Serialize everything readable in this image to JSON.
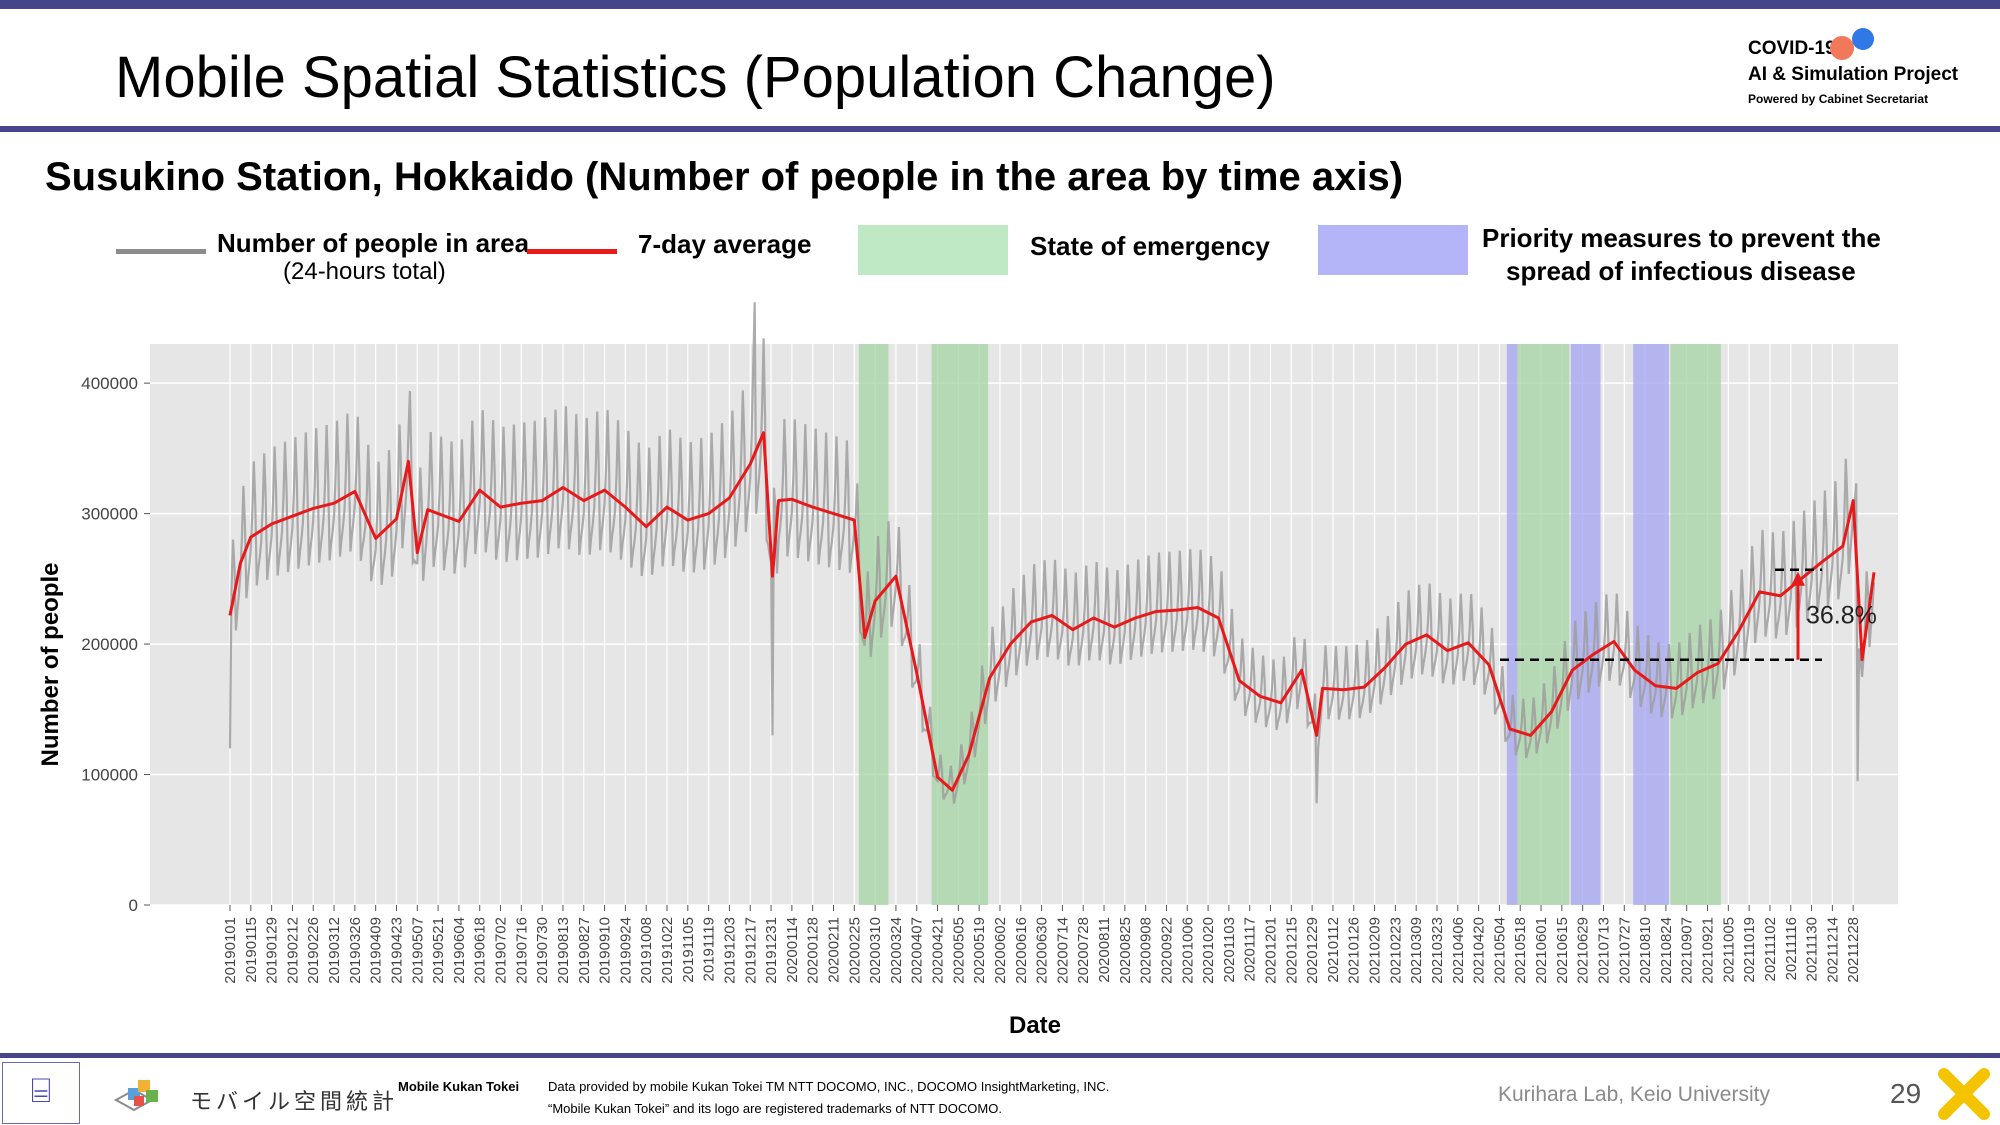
{
  "slide": {
    "title": "Mobile Spatial Statistics (Population Change)",
    "page_number": "29",
    "brand": {
      "line1": "COVID-19",
      "line2": "AI & Simulation Project",
      "line3": "Powered by Cabinet Secretariat"
    },
    "footer": {
      "logo_text": "モバイル空間統計",
      "mobile_kukan_label": "Mobile Kukan Tokei",
      "credit_line1": "Data provided by mobile Kukan Tokei TM NTT DOCOMO, INC., DOCOMO InsightMarketing, INC.",
      "credit_line2": "“Mobile Kukan Tokei” and its logo are registered trademarks of NTT DOCOMO.",
      "lab": "Kurihara Lab, Keio University"
    }
  },
  "legend": {
    "gray_label": "Number of people in area",
    "gray_sublabel": "(24-hours total)",
    "red_label": "7-day average",
    "green_label": "State of emergency",
    "purple_label_line1": "Priority measures to prevent the",
    "purple_label_line2": "spread of infectious disease"
  },
  "colors": {
    "daily_line": "#9e9e9e",
    "average_line": "#e8191a",
    "emergency_band": "#9fd19f",
    "priority_band": "#9e9ef2",
    "plot_background": "#e6e6e6",
    "accent": "#45458a"
  },
  "chart_data": {
    "type": "line",
    "title": "Susukino Station, Hokkaido (Number of people in the area by time axis)",
    "xlabel": "Date",
    "ylabel": "Number of people",
    "ylim": [
      0,
      430000
    ],
    "xlim": [
      "2019-01-01",
      "2022-01-11"
    ],
    "yticks": [
      0,
      100000,
      200000,
      300000,
      400000
    ],
    "ytick_labels": [
      "0",
      "100000",
      "200000",
      "300000",
      "400000"
    ],
    "xtick_labels": [
      "20190101",
      "20190115",
      "20190129",
      "20190212",
      "20190226",
      "20190312",
      "20190326",
      "20190409",
      "20190423",
      "20190507",
      "20190521",
      "20190604",
      "20190618",
      "20190702",
      "20190716",
      "20190730",
      "20190813",
      "20190827",
      "20190910",
      "20190924",
      "20191008",
      "20191022",
      "20191105",
      "20191119",
      "20191203",
      "20191217",
      "20191231",
      "20200114",
      "20200128",
      "20200211",
      "20200225",
      "20200310",
      "20200324",
      "20200407",
      "20200421",
      "20200505",
      "20200519",
      "20200602",
      "20200616",
      "20200630",
      "20200714",
      "20200728",
      "20200811",
      "20200825",
      "20200908",
      "20200922",
      "20201006",
      "20201020",
      "20201103",
      "20201117",
      "20201201",
      "20201215",
      "20201229",
      "20210112",
      "20210126",
      "20210209",
      "20210223",
      "20210309",
      "20210323",
      "20210406",
      "20210420",
      "20210504",
      "20210518",
      "20210601",
      "20210615",
      "20210629",
      "20210713",
      "20210727",
      "20210810",
      "20210824",
      "20210907",
      "20210921",
      "20211005",
      "20211019",
      "20211102",
      "20211116",
      "20211130",
      "20211214",
      "20211228"
    ],
    "grid": true,
    "series": [
      {
        "name": "7-day average",
        "x": [
          "2019-01-01",
          "2019-01-08",
          "2019-01-15",
          "2019-01-29",
          "2019-02-12",
          "2019-02-26",
          "2019-03-12",
          "2019-03-26",
          "2019-04-09",
          "2019-04-23",
          "2019-05-01",
          "2019-05-07",
          "2019-05-14",
          "2019-05-21",
          "2019-06-04",
          "2019-06-18",
          "2019-07-02",
          "2019-07-16",
          "2019-07-30",
          "2019-08-13",
          "2019-08-27",
          "2019-09-10",
          "2019-09-24",
          "2019-10-08",
          "2019-10-22",
          "2019-11-05",
          "2019-11-19",
          "2019-12-03",
          "2019-12-17",
          "2019-12-26",
          "2020-01-01",
          "2020-01-05",
          "2020-01-14",
          "2020-01-28",
          "2020-02-11",
          "2020-02-25",
          "2020-03-03",
          "2020-03-10",
          "2020-03-24",
          "2020-04-07",
          "2020-04-21",
          "2020-05-01",
          "2020-05-12",
          "2020-05-26",
          "2020-06-09",
          "2020-06-23",
          "2020-07-07",
          "2020-07-21",
          "2020-08-04",
          "2020-08-18",
          "2020-09-01",
          "2020-09-15",
          "2020-09-29",
          "2020-10-13",
          "2020-10-27",
          "2020-11-10",
          "2020-11-24",
          "2020-12-08",
          "2020-12-22",
          "2021-01-01",
          "2021-01-05",
          "2021-01-19",
          "2021-02-02",
          "2021-02-16",
          "2021-03-02",
          "2021-03-16",
          "2021-03-30",
          "2021-04-13",
          "2021-04-27",
          "2021-05-11",
          "2021-05-25",
          "2021-06-08",
          "2021-06-22",
          "2021-07-06",
          "2021-07-20",
          "2021-08-03",
          "2021-08-17",
          "2021-08-31",
          "2021-09-14",
          "2021-09-28",
          "2021-10-12",
          "2021-10-26",
          "2021-11-09",
          "2021-11-23",
          "2021-12-07",
          "2021-12-21",
          "2021-12-28",
          "2022-01-03",
          "2022-01-11"
        ],
        "y": [
          222000,
          262000,
          282000,
          292000,
          298000,
          304000,
          308000,
          317000,
          281000,
          296000,
          340000,
          270000,
          303000,
          300000,
          294000,
          318000,
          305000,
          308000,
          310000,
          320000,
          310000,
          318000,
          305000,
          290000,
          305000,
          295000,
          300000,
          312000,
          338000,
          362000,
          252000,
          310000,
          311000,
          305000,
          300000,
          295000,
          205000,
          233000,
          252000,
          178000,
          98000,
          88000,
          115000,
          174000,
          200000,
          217000,
          222000,
          211000,
          220000,
          213000,
          220000,
          225000,
          226000,
          228000,
          220000,
          172000,
          160000,
          155000,
          180000,
          130000,
          166000,
          165000,
          167000,
          182000,
          200000,
          207000,
          195000,
          201000,
          184000,
          135000,
          130000,
          148000,
          180000,
          192000,
          202000,
          180000,
          168000,
          166000,
          178000,
          185000,
          210000,
          240000,
          237000,
          250000,
          263000,
          275000,
          310000,
          188000,
          255000
        ]
      },
      {
        "name": "Number of people in area",
        "note": "daily values oscillate weekly around the 7-day average (peaks up to about 465000 in Dec 2019; lows near 72000 in May 2020)"
      }
    ],
    "bands": [
      {
        "type": "State of emergency",
        "start": "2020-02-28",
        "end": "2020-03-19"
      },
      {
        "type": "State of emergency",
        "start": "2020-04-17",
        "end": "2020-05-25"
      },
      {
        "type": "Priority measures to prevent the spread of infectious disease",
        "start": "2021-05-09",
        "end": "2021-05-16"
      },
      {
        "type": "State of emergency",
        "start": "2021-05-16",
        "end": "2021-06-20"
      },
      {
        "type": "Priority measures to prevent the spread of infectious disease",
        "start": "2021-06-21",
        "end": "2021-07-11"
      },
      {
        "type": "Priority measures to prevent the spread of infectious disease",
        "start": "2021-08-02",
        "end": "2021-08-26"
      },
      {
        "type": "State of emergency",
        "start": "2021-08-27",
        "end": "2021-09-30"
      }
    ],
    "annotation": {
      "text": "36.8%",
      "from_value": 188000,
      "to_value": 257000
    }
  }
}
